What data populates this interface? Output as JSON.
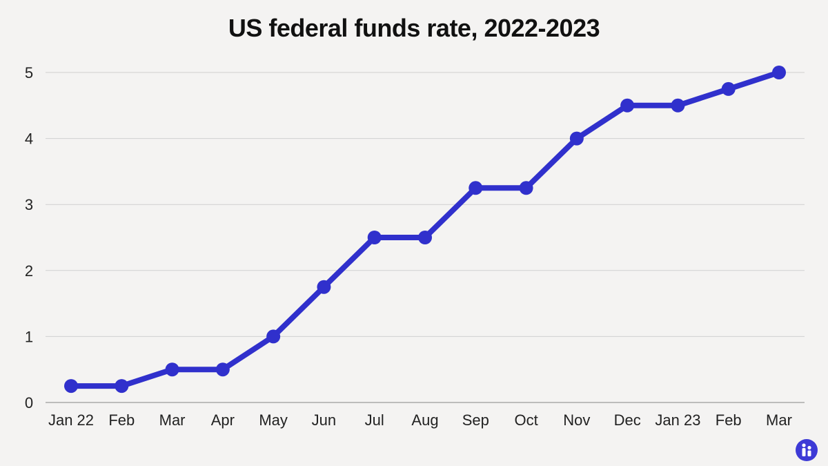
{
  "chart_data": {
    "type": "line",
    "title": "US federal funds rate, 2022-2023",
    "xlabel": "",
    "ylabel": "",
    "categories": [
      "Jan 22",
      "Feb",
      "Mar",
      "Apr",
      "May",
      "Jun",
      "Jul",
      "Aug",
      "Sep",
      "Oct",
      "Nov",
      "Dec",
      "Jan 23",
      "Feb",
      "Mar"
    ],
    "series": [
      {
        "values": [
          0.25,
          0.25,
          0.5,
          0.5,
          1,
          1.75,
          2.5,
          2.5,
          3.25,
          3.25,
          4,
          4.5,
          4.5,
          4.75,
          5
        ]
      }
    ],
    "yticks": [
      "0",
      "1",
      "2",
      "3",
      "4",
      "5"
    ],
    "ylim": [
      0,
      5
    ],
    "grid": true,
    "legend": "none",
    "colors": {
      "line": "#3030cc",
      "grid": "#cfcfcf",
      "background": "#f4f3f2",
      "text": "#222222"
    }
  },
  "logo": {
    "icon": "info-logo-icon",
    "color": "#3d3ad6"
  }
}
